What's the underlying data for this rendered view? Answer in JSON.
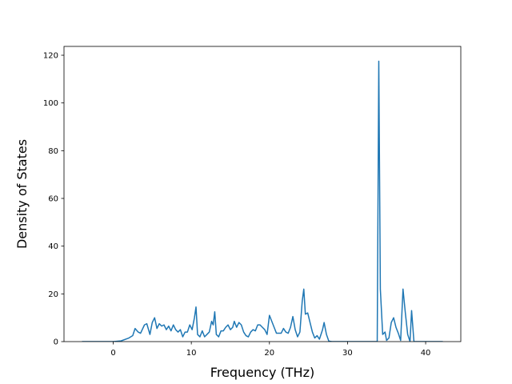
{
  "chart_data": {
    "type": "line",
    "xlabel": "Frequency (THz)",
    "ylabel": "Density of States",
    "color": "#1f77b4",
    "x": [
      -4,
      0,
      1,
      2,
      2.5,
      2.8,
      3.2,
      3.5,
      4,
      4.3,
      4.7,
      5,
      5.3,
      5.6,
      5.9,
      6.2,
      6.5,
      6.8,
      7.1,
      7.4,
      7.7,
      8,
      8.3,
      8.6,
      8.9,
      9.2,
      9.5,
      9.8,
      10.1,
      10.4,
      10.6,
      10.8,
      11.1,
      11.4,
      11.7,
      12,
      12.3,
      12.6,
      12.8,
      13,
      13.2,
      13.5,
      13.8,
      14.1,
      14.4,
      14.7,
      15,
      15.3,
      15.5,
      15.8,
      16.1,
      16.4,
      16.7,
      17,
      17.3,
      17.6,
      17.9,
      18.2,
      18.5,
      18.8,
      19.1,
      19.4,
      19.7,
      20,
      20.3,
      20.6,
      20.9,
      21.2,
      21.5,
      21.8,
      22.1,
      22.4,
      22.7,
      23,
      23.3,
      23.6,
      23.9,
      24.2,
      24.4,
      24.6,
      24.9,
      25.2,
      25.5,
      25.8,
      26.1,
      26.4,
      26.8,
      27,
      27.3,
      27.6,
      28,
      33.5,
      33.8,
      34,
      34.2,
      34.5,
      34.8,
      35,
      35.3,
      35.6,
      35.9,
      36.2,
      36.5,
      36.8,
      37.1,
      37.4,
      37.7,
      38,
      38.2,
      38.5,
      42.2
    ],
    "values": [
      0,
      0,
      0.3,
      1.5,
      2.5,
      5.5,
      4,
      3.5,
      7,
      7.5,
      3,
      8,
      10,
      5.5,
      7.5,
      6.5,
      7,
      5,
      6.5,
      4.5,
      7,
      5,
      4,
      5,
      2,
      4,
      4,
      7,
      5,
      10,
      14.5,
      3,
      2,
      4.5,
      2,
      3,
      4,
      8.5,
      7,
      12.5,
      3,
      2,
      4.5,
      4.5,
      6,
      7,
      5,
      6,
      8.5,
      6,
      8,
      7,
      4,
      2.5,
      2,
      4,
      5,
      4.5,
      7,
      7,
      6,
      5,
      3,
      11,
      8.5,
      6,
      3.5,
      3.5,
      3.5,
      5.5,
      4,
      3.5,
      6,
      10.5,
      5,
      2,
      4,
      17,
      22,
      11.5,
      12,
      8,
      4,
      1.5,
      2.5,
      1,
      5,
      8,
      3,
      0.2,
      0,
      0,
      0,
      117.5,
      22,
      3,
      4,
      0.5,
      1.5,
      8,
      10,
      6,
      3.5,
      0.5,
      22,
      12,
      3,
      0,
      13,
      0,
      0
    ],
    "xlim": [
      -6.3,
      44.5
    ],
    "xticks": [
      0,
      10,
      20,
      30,
      40
    ],
    "ylim": [
      0,
      123.7
    ],
    "yticks": [
      0,
      20,
      40,
      60,
      80,
      100,
      120
    ]
  }
}
